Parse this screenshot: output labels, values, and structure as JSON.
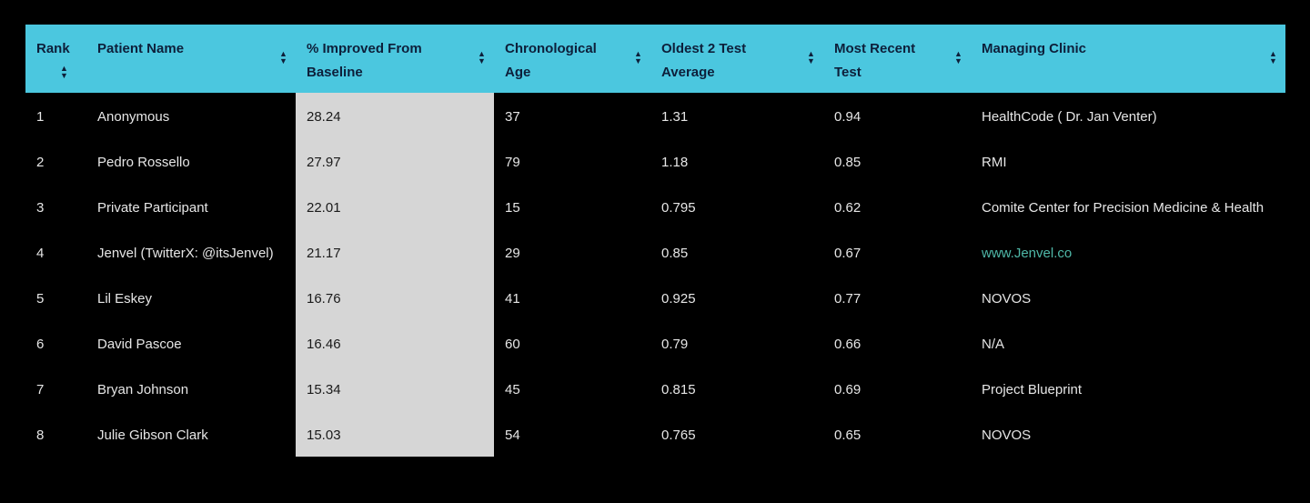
{
  "table": {
    "columns": [
      {
        "label": "Rank",
        "sort_icon": "sort-icon"
      },
      {
        "label": "Patient Name",
        "sort_icon": "sort-icon"
      },
      {
        "label": "% Improved From Baseline",
        "sort_icon": "sort-icon"
      },
      {
        "label": "Chronological Age",
        "sort_icon": "sort-icon"
      },
      {
        "label": "Oldest 2 Test Average",
        "sort_icon": "sort-icon"
      },
      {
        "label": "Most Recent Test",
        "sort_icon": "sort-icon"
      },
      {
        "label": "Managing Clinic",
        "sort_icon": "sort-icon"
      }
    ],
    "rows": [
      {
        "rank": "1",
        "name": "Anonymous",
        "improved": "28.24",
        "age": "37",
        "oldest_avg": "1.31",
        "recent": "0.94",
        "clinic": "HealthCode ( Dr. Jan Venter)",
        "clinic_is_link": false
      },
      {
        "rank": "2",
        "name": "Pedro Rossello",
        "improved": "27.97",
        "age": "79",
        "oldest_avg": "1.18",
        "recent": "0.85",
        "clinic": "RMI",
        "clinic_is_link": false
      },
      {
        "rank": "3",
        "name": "Private Participant",
        "improved": "22.01",
        "age": "15",
        "oldest_avg": "0.795",
        "recent": "0.62",
        "clinic": "Comite Center for Precision Medicine & Health",
        "clinic_is_link": false
      },
      {
        "rank": "4",
        "name": "Jenvel (TwitterX: @itsJenvel)",
        "improved": "21.17",
        "age": "29",
        "oldest_avg": "0.85",
        "recent": "0.67",
        "clinic": "www.Jenvel.co",
        "clinic_is_link": true
      },
      {
        "rank": "5",
        "name": "Lil Eskey",
        "improved": "16.76",
        "age": "41",
        "oldest_avg": "0.925",
        "recent": "0.77",
        "clinic": "NOVOS",
        "clinic_is_link": false
      },
      {
        "rank": "6",
        "name": "David Pascoe",
        "improved": "16.46",
        "age": "60",
        "oldest_avg": "0.79",
        "recent": "0.66",
        "clinic": "N/A",
        "clinic_is_link": false
      },
      {
        "rank": "7",
        "name": "Bryan Johnson",
        "improved": "15.34",
        "age": "45",
        "oldest_avg": "0.815",
        "recent": "0.69",
        "clinic": "Project Blueprint",
        "clinic_is_link": false
      },
      {
        "rank": "8",
        "name": "Julie Gibson Clark",
        "improved": "15.03",
        "age": "54",
        "oldest_avg": "0.765",
        "recent": "0.65",
        "clinic": "NOVOS",
        "clinic_is_link": false
      }
    ]
  },
  "colors": {
    "header_bg": "#4bc7df",
    "highlight_column": "#d6d6d6",
    "link": "#4fb8a8",
    "background": "#000000"
  }
}
